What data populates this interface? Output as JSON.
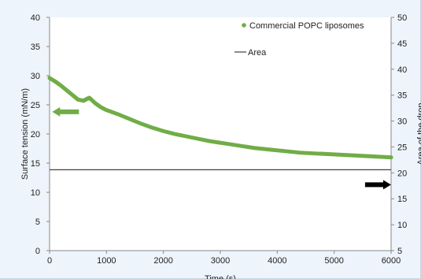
{
  "chart_data": {
    "type": "scatter",
    "title": "",
    "xlabel": "Time (s)",
    "ylabel": "Surface tension (mN/m)",
    "y2label": "Area of the drop",
    "xlim": [
      0,
      6000
    ],
    "ylim": [
      0,
      40
    ],
    "y2lim": [
      5,
      50
    ],
    "xticks": [
      "0",
      "1000",
      "2000",
      "3000",
      "4000",
      "5000",
      "6000"
    ],
    "yticks": [
      "0",
      "5",
      "10",
      "15",
      "20",
      "25",
      "30",
      "35",
      "40"
    ],
    "y2ticks": [
      "5",
      "10",
      "15",
      "20",
      "25",
      "30",
      "35",
      "40",
      "45",
      "50"
    ],
    "grid": false,
    "legend_position": "top-right",
    "series": [
      {
        "name": "Commercial POPC liposomes",
        "axis": "left",
        "color": "#70ad47",
        "style": "markers",
        "x": [
          0,
          100,
          200,
          300,
          400,
          500,
          600,
          650,
          700,
          800,
          900,
          1000,
          1200,
          1400,
          1600,
          1800,
          2000,
          2200,
          2400,
          2600,
          2800,
          3000,
          3200,
          3400,
          3600,
          3800,
          4000,
          4200,
          4400,
          4600,
          4800,
          5000,
          5200,
          5400,
          5600,
          5800,
          6000
        ],
        "y": [
          29.6,
          29.0,
          28.3,
          27.5,
          26.7,
          25.9,
          25.7,
          26.0,
          26.2,
          25.3,
          24.6,
          24.1,
          23.4,
          22.6,
          21.8,
          21.1,
          20.5,
          20.0,
          19.6,
          19.2,
          18.8,
          18.5,
          18.2,
          17.9,
          17.6,
          17.4,
          17.2,
          17.0,
          16.8,
          16.7,
          16.6,
          16.5,
          16.4,
          16.3,
          16.2,
          16.1,
          16.0
        ]
      },
      {
        "name": "Area",
        "axis": "right",
        "color": "#404040",
        "style": "line",
        "x": [
          0,
          6000
        ],
        "y": [
          20.6,
          20.6
        ]
      }
    ],
    "annotations": [
      {
        "kind": "arrow-left",
        "color": "#70ad47",
        "axis": "left",
        "x": 350,
        "y": 23.8
      },
      {
        "kind": "arrow-right",
        "color": "#000000",
        "axis": "left",
        "x": 5750,
        "y": 11.3
      }
    ]
  }
}
